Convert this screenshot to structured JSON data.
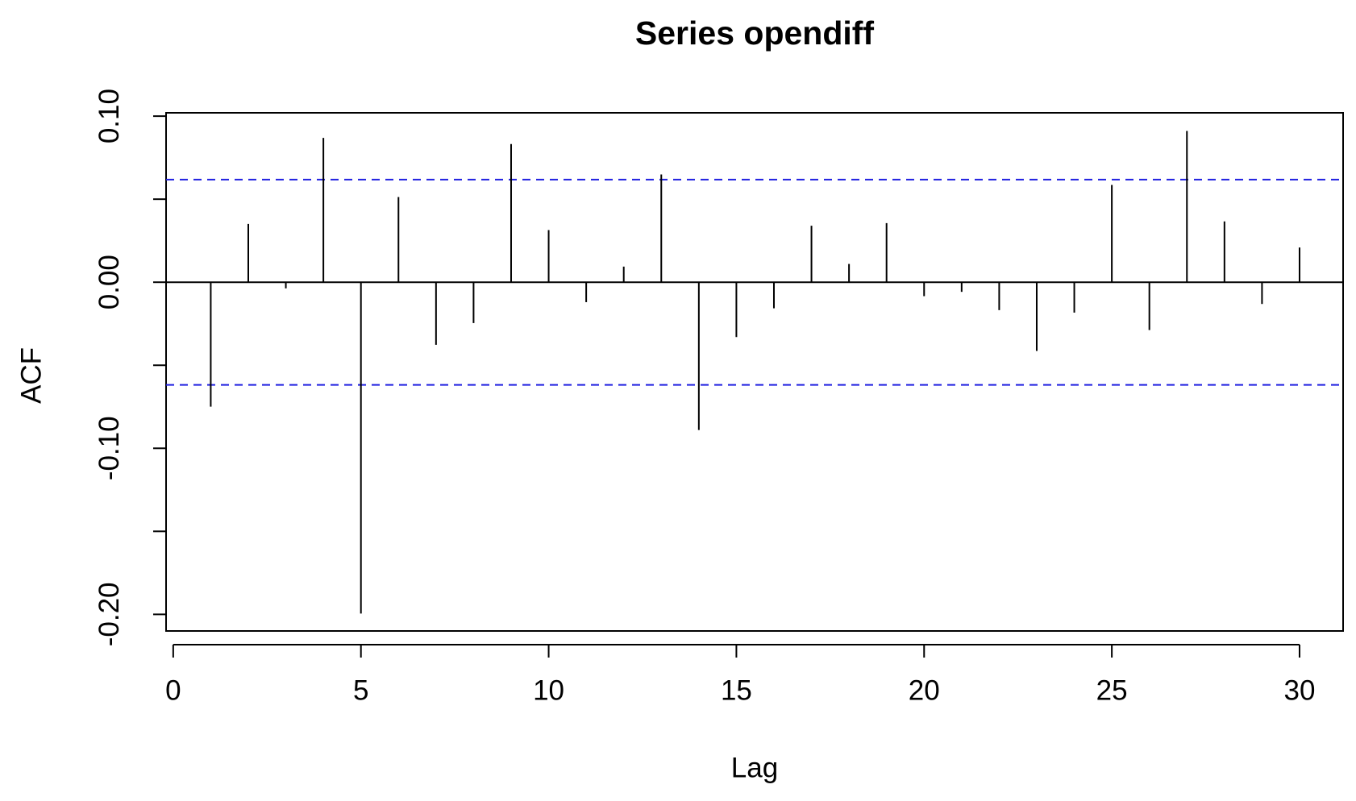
{
  "chart_data": {
    "type": "acf",
    "title": "Series opendiff",
    "x_label": "Lag",
    "y_label": "ACF",
    "x": [
      1,
      2,
      3,
      4,
      5,
      6,
      7,
      8,
      9,
      10,
      11,
      12,
      13,
      14,
      15,
      16,
      17,
      18,
      19,
      20,
      21,
      22,
      23,
      24,
      25,
      26,
      27,
      28,
      29,
      30
    ],
    "values": [
      -0.0749,
      0.0351,
      -0.0037,
      0.0869,
      -0.1995,
      0.0513,
      -0.0377,
      -0.0246,
      0.0832,
      0.0314,
      -0.012,
      0.0094,
      0.0649,
      -0.089,
      -0.033,
      -0.0157,
      0.034,
      0.011,
      0.0356,
      -0.0084,
      -0.0058,
      -0.0168,
      -0.0414,
      -0.0183,
      0.0586,
      -0.0288,
      0.0911,
      0.0366,
      -0.0131,
      0.0209
    ],
    "color": "#000000",
    "ci_lines": [
      0.0618,
      -0.0618
    ],
    "ci_color": "#2020e0",
    "xlim": [
      -0.19,
      31.16
    ],
    "ylim": [
      -0.21,
      0.102
    ],
    "xticks": [
      0,
      5,
      10,
      15,
      20,
      25,
      30
    ],
    "yticks": [
      {
        "value": -0.2,
        "label": "-0.20"
      },
      {
        "value": -0.1,
        "label": "-0.10"
      },
      {
        "value": 0,
        "label": "0.00"
      },
      {
        "value": 0.1,
        "label": "0.10"
      }
    ],
    "yminor_ticks": [
      -0.15,
      -0.05,
      0.05
    ]
  }
}
